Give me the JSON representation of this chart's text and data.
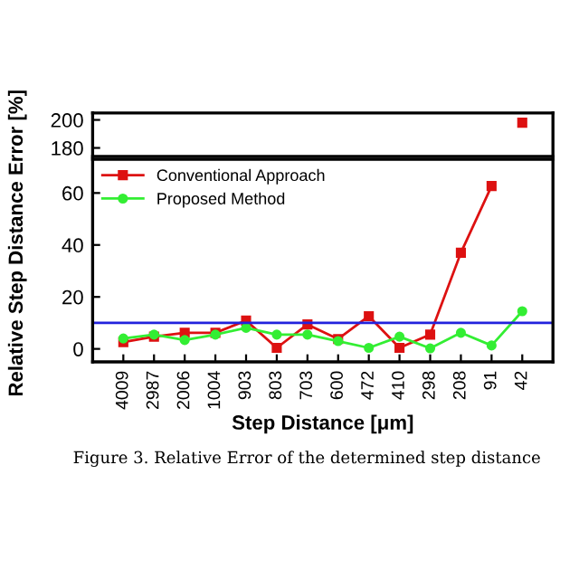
{
  "chart_data": [
    {
      "type": "line",
      "categories": [
        "4009",
        "2987",
        "2006",
        "1004",
        "903",
        "803",
        "703",
        "600",
        "472",
        "410",
        "298",
        "208",
        "91",
        "42"
      ],
      "series": [
        {
          "color": "#dd1111",
          "marker": "square",
          "values": [
            null,
            null,
            null,
            null,
            null,
            null,
            null,
            null,
            null,
            null,
            null,
            null,
            null,
            198
          ]
        }
      ],
      "ylim": [
        174,
        205
      ],
      "yticks": [
        180,
        200
      ],
      "tick_labels": "y",
      "grid": false
    },
    {
      "type": "line",
      "xlabel": "Step Distance [μm]",
      "ylabel": "Relative Step Distance Error [%]",
      "categories": [
        "4009",
        "2987",
        "2006",
        "1004",
        "903",
        "803",
        "703",
        "600",
        "472",
        "410",
        "298",
        "208",
        "91",
        "42"
      ],
      "series": [
        {
          "name": "Conventional Approach",
          "color": "#dd1111",
          "marker": "square",
          "values": [
            2.6,
            4.7,
            6.2,
            6.2,
            10.9,
            0.4,
            9.4,
            3.8,
            12.6,
            0.4,
            5.5,
            37,
            62.7,
            null
          ]
        },
        {
          "name": "Proposed Method",
          "color": "#33ee33",
          "marker": "circle",
          "values": [
            4,
            5.5,
            3.4,
            5.5,
            8.1,
            5.5,
            5.5,
            3,
            0.4,
            4.7,
            0.2,
            6.2,
            1.3,
            14.5
          ]
        }
      ],
      "ylim": [
        -5,
        73
      ],
      "yticks": [
        0,
        20,
        40,
        60
      ],
      "ref_lines": [
        {
          "axis": "y",
          "value": 10,
          "color": "#2222dd"
        }
      ],
      "grid": false,
      "legend": "top left",
      "annotations": [
        "Figure 3. Relative Error of the determined step distance"
      ]
    }
  ]
}
